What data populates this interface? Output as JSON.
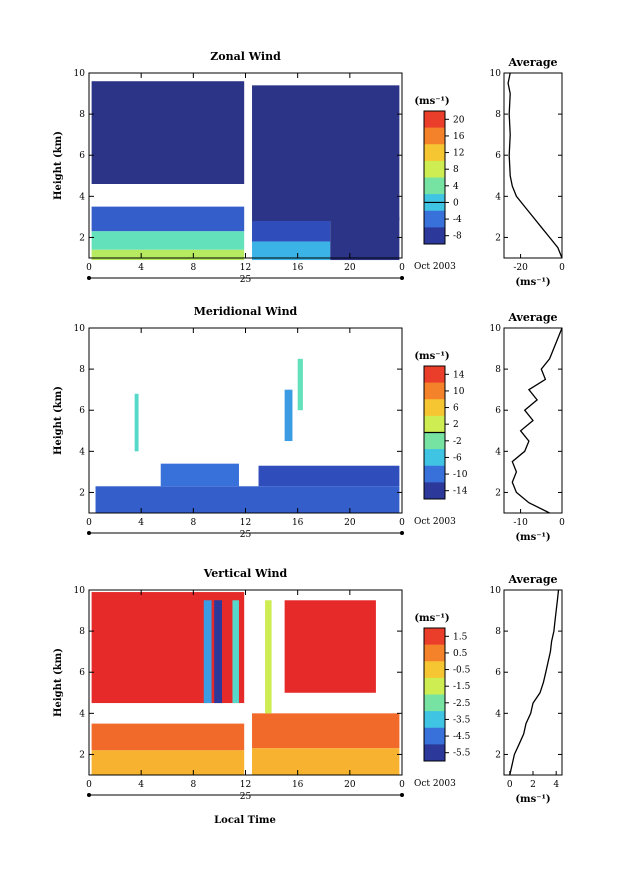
{
  "figure": {
    "x_axis_label": "Local Time",
    "date_label": "Oct 2003",
    "day_label": "25"
  },
  "chart_data": [
    {
      "type": "heatmap",
      "title": "Zonal Wind",
      "ylabel": "Height (km)",
      "xlabel": "Local Time",
      "x_ticks": [
        "0",
        "4",
        "8",
        "12",
        "16",
        "20",
        "0"
      ],
      "xlim": [
        0,
        24
      ],
      "y_ticks": [
        "2",
        "4",
        "6",
        "8",
        "10"
      ],
      "ylim": [
        1,
        10
      ],
      "colorbar": {
        "unit": "(ms⁻¹)",
        "ticks": [
          "20",
          "16",
          "12",
          "8",
          "4",
          "0",
          "-4",
          "-8"
        ],
        "range": [
          -10,
          22
        ],
        "zero_line": 0
      },
      "regions": [
        {
          "x": [
            0.2,
            11.9
          ],
          "y": [
            4.6,
            9.6
          ],
          "value": -9
        },
        {
          "x": [
            12.5,
            23.8
          ],
          "y": [
            2.8,
            9.4
          ],
          "value": -9
        },
        {
          "x": [
            0.2,
            11.9
          ],
          "y": [
            2.3,
            3.5
          ],
          "value": -5
        },
        {
          "x": [
            0.2,
            11.9
          ],
          "y": [
            1.4,
            2.3
          ],
          "value": 3
        },
        {
          "x": [
            0.2,
            11.9
          ],
          "y": [
            0.9,
            1.4
          ],
          "value": 7
        },
        {
          "x": [
            12.5,
            18.5
          ],
          "y": [
            1.8,
            2.8
          ],
          "value": -6
        },
        {
          "x": [
            12.5,
            18.5
          ],
          "y": [
            0.9,
            1.8
          ],
          "value": -1
        },
        {
          "x": [
            18.5,
            23.8
          ],
          "y": [
            0.9,
            3.0
          ],
          "value": -9
        }
      ],
      "average_profile": {
        "title": "Average",
        "xlabel": "(ms⁻¹)",
        "x_ticks": [
          "-20",
          "0"
        ],
        "xlim": [
          -28,
          0
        ],
        "heights": [
          1.0,
          1.5,
          2.0,
          2.5,
          3.0,
          3.5,
          4.0,
          4.5,
          5.0,
          6.0,
          7.0,
          8.0,
          9.0,
          9.5,
          10.0
        ],
        "values": [
          0,
          -2,
          -6,
          -10,
          -14,
          -18,
          -22,
          -24,
          -25,
          -25.5,
          -25,
          -25.5,
          -25,
          -26,
          -25
        ]
      }
    },
    {
      "type": "heatmap",
      "title": "Meridional Wind",
      "ylabel": "Height (km)",
      "xlabel": "Local Time",
      "x_ticks": [
        "0",
        "4",
        "8",
        "12",
        "16",
        "20",
        "0"
      ],
      "xlim": [
        0,
        24
      ],
      "y_ticks": [
        "2",
        "4",
        "6",
        "8",
        "10"
      ],
      "ylim": [
        1,
        10
      ],
      "colorbar": {
        "unit": "(ms⁻¹)",
        "ticks": [
          "14",
          "10",
          "6",
          "2",
          "-2",
          "-6",
          "-10",
          "-14"
        ],
        "range": [
          -16,
          16
        ],
        "zero_line": 0
      },
      "regions": [
        {
          "x": [
            0.5,
            23.8
          ],
          "y": [
            1.0,
            2.3
          ],
          "value": -11
        },
        {
          "x": [
            5.5,
            11.5
          ],
          "y": [
            2.3,
            3.4
          ],
          "value": -10
        },
        {
          "x": [
            13.0,
            23.8
          ],
          "y": [
            2.3,
            3.3
          ],
          "value": -12
        },
        {
          "x": [
            3.5,
            3.8
          ],
          "y": [
            4.0,
            6.8
          ],
          "value": -4
        },
        {
          "x": [
            15.0,
            15.6
          ],
          "y": [
            4.5,
            7.0
          ],
          "value": -8
        },
        {
          "x": [
            16.0,
            16.4
          ],
          "y": [
            6.0,
            8.5
          ],
          "value": -3
        }
      ],
      "average_profile": {
        "title": "Average",
        "xlabel": "(ms⁻¹)",
        "x_ticks": [
          "-10",
          "0"
        ],
        "xlim": [
          -14,
          0
        ],
        "heights": [
          1.0,
          1.5,
          2.0,
          2.5,
          3.0,
          3.5,
          4.0,
          4.5,
          5.0,
          5.5,
          6.0,
          6.5,
          7.0,
          7.5,
          8.0,
          8.5,
          9.0,
          9.5,
          10.0
        ],
        "values": [
          -3,
          -8,
          -11,
          -12,
          -11,
          -12,
          -9,
          -8,
          -10,
          -7,
          -9,
          -6,
          -8,
          -4,
          -5,
          -3,
          -2,
          -1,
          0
        ]
      }
    },
    {
      "type": "heatmap",
      "title": "Vertical Wind",
      "ylabel": "Height (km)",
      "xlabel": "Local Time",
      "x_ticks": [
        "0",
        "4",
        "8",
        "12",
        "16",
        "20",
        "0"
      ],
      "xlim": [
        0,
        24
      ],
      "y_ticks": [
        "2",
        "4",
        "6",
        "8",
        "10"
      ],
      "ylim": [
        1,
        10
      ],
      "colorbar": {
        "unit": "(ms⁻¹)",
        "ticks": [
          "1.5",
          "0.5",
          "-0.5",
          "-1.5",
          "-2.5",
          "-3.5",
          "-4.5",
          "-5.5"
        ],
        "range": [
          -6,
          2
        ],
        "zero_line": null
      },
      "regions": [
        {
          "x": [
            0.2,
            11.9
          ],
          "y": [
            4.5,
            9.9
          ],
          "value": 2
        },
        {
          "x": [
            15.0,
            22.0
          ],
          "y": [
            5.0,
            9.5
          ],
          "value": 2
        },
        {
          "x": [
            8.8,
            9.4
          ],
          "y": [
            4.5,
            9.5
          ],
          "value": -4
        },
        {
          "x": [
            9.6,
            10.2
          ],
          "y": [
            4.5,
            9.5
          ],
          "value": -5.5
        },
        {
          "x": [
            11.0,
            11.5
          ],
          "y": [
            4.5,
            9.5
          ],
          "value": -3
        },
        {
          "x": [
            0.2,
            11.9
          ],
          "y": [
            2.2,
            3.5
          ],
          "value": 0.8
        },
        {
          "x": [
            0.2,
            11.9
          ],
          "y": [
            1.0,
            2.2
          ],
          "value": -0.2
        },
        {
          "x": [
            12.5,
            23.8
          ],
          "y": [
            2.3,
            4.0
          ],
          "value": 0.8
        },
        {
          "x": [
            12.5,
            23.8
          ],
          "y": [
            1.0,
            2.3
          ],
          "value": -0.2
        },
        {
          "x": [
            13.5,
            14.0
          ],
          "y": [
            4.0,
            9.5
          ],
          "value": -1.5
        }
      ],
      "average_profile": {
        "title": "Average",
        "xlabel": "(ms⁻¹)",
        "x_ticks": [
          "0",
          "2",
          "4"
        ],
        "xlim": [
          -0.5,
          4.5
        ],
        "heights": [
          1.0,
          1.5,
          2.0,
          2.5,
          3.0,
          3.5,
          4.0,
          4.5,
          5.0,
          5.5,
          6.0,
          6.5,
          7.0,
          7.5,
          8.0,
          8.5,
          9.0,
          9.5,
          10.0
        ],
        "values": [
          0,
          0.2,
          0.4,
          0.8,
          1.2,
          1.4,
          1.8,
          2.0,
          2.6,
          2.9,
          3.1,
          3.3,
          3.5,
          3.6,
          3.8,
          3.9,
          4.0,
          4.1,
          4.2
        ]
      }
    }
  ]
}
